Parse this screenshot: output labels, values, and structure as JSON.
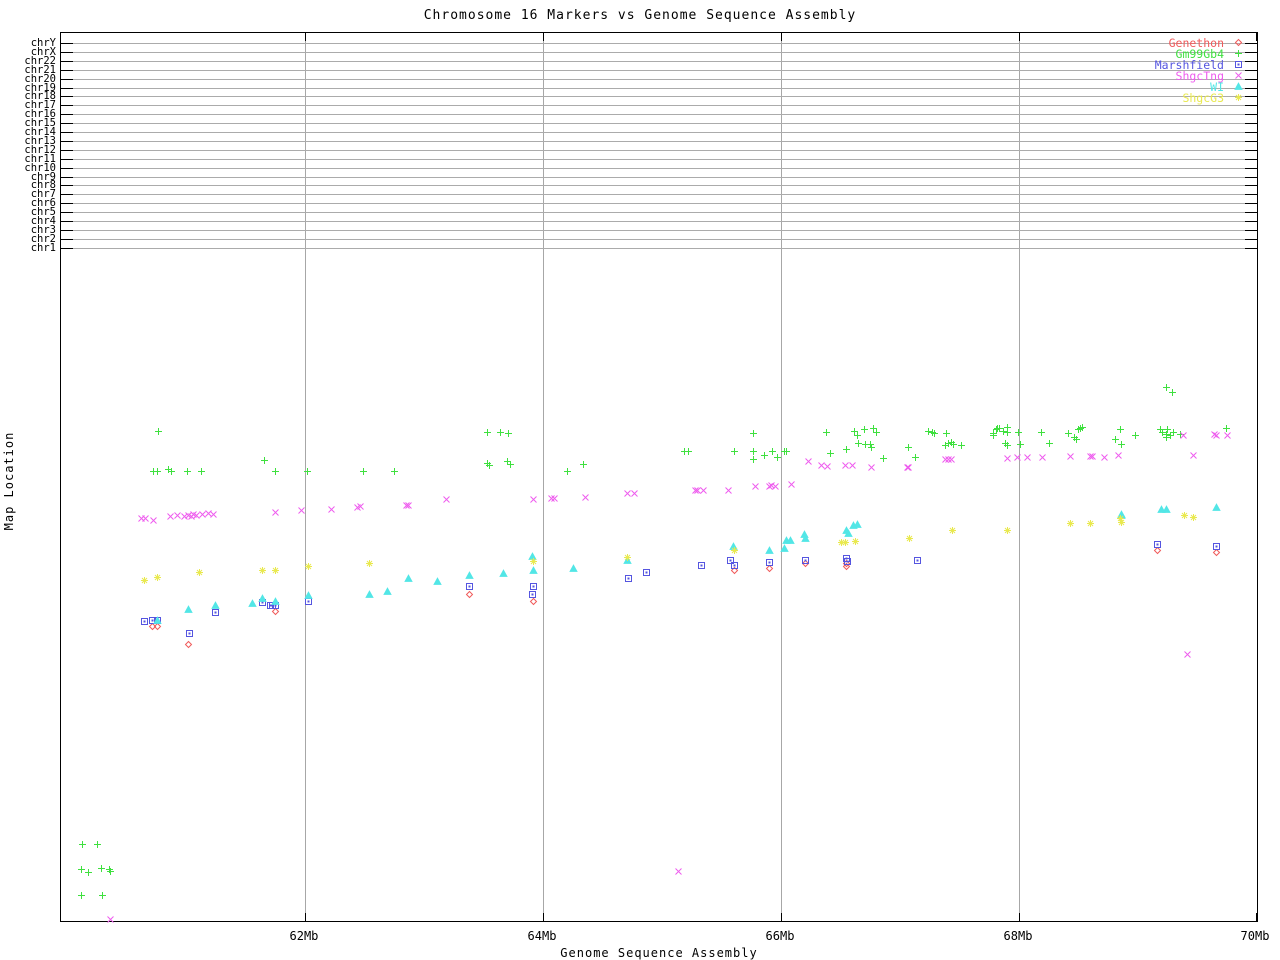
{
  "title": "Chromosome 16 Markers vs Genome Sequence Assembly",
  "chart_data": {
    "type": "scatter",
    "title": "Chromosome 16 Markers vs Genome Sequence Assembly",
    "xlabel": "Genome Sequence Assembly",
    "ylabel": "Map Location",
    "xlim": [
      59.95,
      70.0
    ],
    "x_unit": "Mb",
    "x_ticks": [
      {
        "value": 62,
        "label": "62Mb"
      },
      {
        "value": 64,
        "label": "64Mb"
      },
      {
        "value": 66,
        "label": "66Mb"
      },
      {
        "value": 68,
        "label": "68Mb"
      },
      {
        "value": 70,
        "label": "70Mb"
      }
    ],
    "grid_x_values": [
      62,
      64,
      66,
      68
    ],
    "y_axis_note": "y values are unlabeled map locations, given as fraction of plot height from bottom (0) to top (1)",
    "chromosome_rows": [
      "chrY",
      "chrX",
      "chr22",
      "chr21",
      "chr20",
      "chr19",
      "chr18",
      "chr17",
      "chr16",
      "chr15",
      "chr14",
      "chr13",
      "chr12",
      "chr11",
      "chr10",
      "chr9",
      "chr8",
      "chr7",
      "chr6",
      "chr5",
      "chr4",
      "chr3",
      "chr2",
      "chr1"
    ],
    "legend_position": "top-right",
    "series": [
      {
        "name": "Genethon",
        "marker": "diamond",
        "color": "#f05a5a",
        "points": [
          [
            60.72,
            0.338
          ],
          [
            60.76,
            0.338
          ],
          [
            61.02,
            0.318
          ],
          [
            61.75,
            0.355
          ],
          [
            63.38,
            0.375
          ],
          [
            63.92,
            0.367
          ],
          [
            65.61,
            0.402
          ],
          [
            65.9,
            0.404
          ],
          [
            66.21,
            0.409
          ],
          [
            66.55,
            0.409
          ],
          [
            66.55,
            0.406
          ],
          [
            69.16,
            0.424
          ],
          [
            69.66,
            0.422
          ]
        ]
      },
      {
        "name": "Gm99Gb4",
        "marker": "plus",
        "color": "#3fe03f",
        "points": [
          [
            60.13,
            0.093
          ],
          [
            60.26,
            0.093
          ],
          [
            60.12,
            0.065
          ],
          [
            60.18,
            0.061
          ],
          [
            60.29,
            0.066
          ],
          [
            60.36,
            0.065
          ],
          [
            60.37,
            0.062
          ],
          [
            60.12,
            0.035
          ],
          [
            60.3,
            0.035
          ],
          [
            60.77,
            0.558
          ],
          [
            60.73,
            0.513
          ],
          [
            60.76,
            0.513
          ],
          [
            60.85,
            0.515
          ],
          [
            60.88,
            0.513
          ],
          [
            61.01,
            0.513
          ],
          [
            61.13,
            0.513
          ],
          [
            61.66,
            0.525
          ],
          [
            61.75,
            0.513
          ],
          [
            62.02,
            0.513
          ],
          [
            62.49,
            0.513
          ],
          [
            62.75,
            0.513
          ],
          [
            63.53,
            0.557
          ],
          [
            63.64,
            0.557
          ],
          [
            63.71,
            0.556
          ],
          [
            63.53,
            0.522
          ],
          [
            63.55,
            0.52
          ],
          [
            63.7,
            0.524
          ],
          [
            63.73,
            0.521
          ],
          [
            64.21,
            0.513
          ],
          [
            64.34,
            0.521
          ],
          [
            65.19,
            0.535
          ],
          [
            65.22,
            0.535
          ],
          [
            65.61,
            0.535
          ],
          [
            65.77,
            0.556
          ],
          [
            65.77,
            0.535
          ],
          [
            65.77,
            0.527
          ],
          [
            65.86,
            0.531
          ],
          [
            65.93,
            0.535
          ],
          [
            65.97,
            0.529
          ],
          [
            66.03,
            0.535
          ],
          [
            66.05,
            0.535
          ],
          [
            66.38,
            0.557
          ],
          [
            66.42,
            0.533
          ],
          [
            66.55,
            0.538
          ],
          [
            66.62,
            0.558
          ],
          [
            66.64,
            0.554
          ],
          [
            66.65,
            0.544
          ],
          [
            66.7,
            0.56
          ],
          [
            66.71,
            0.543
          ],
          [
            66.75,
            0.543
          ],
          [
            66.78,
            0.561
          ],
          [
            66.8,
            0.557
          ],
          [
            66.76,
            0.54
          ],
          [
            66.86,
            0.528
          ],
          [
            67.07,
            0.54
          ],
          [
            67.13,
            0.529
          ],
          [
            67.24,
            0.558
          ],
          [
            67.27,
            0.557
          ],
          [
            67.29,
            0.556
          ],
          [
            67.38,
            0.542
          ],
          [
            67.41,
            0.544
          ],
          [
            67.43,
            0.546
          ],
          [
            67.45,
            0.543
          ],
          [
            67.39,
            0.556
          ],
          [
            67.52,
            0.542
          ],
          [
            67.79,
            0.553
          ],
          [
            67.79,
            0.556
          ],
          [
            67.81,
            0.56
          ],
          [
            67.82,
            0.561
          ],
          [
            67.84,
            0.561
          ],
          [
            67.87,
            0.558
          ],
          [
            67.9,
            0.557
          ],
          [
            67.9,
            0.562
          ],
          [
            67.89,
            0.544
          ],
          [
            67.9,
            0.542
          ],
          [
            68.0,
            0.557
          ],
          [
            68.01,
            0.543
          ],
          [
            68.19,
            0.557
          ],
          [
            68.26,
            0.544
          ],
          [
            68.42,
            0.556
          ],
          [
            68.47,
            0.551
          ],
          [
            68.48,
            0.549
          ],
          [
            68.5,
            0.56
          ],
          [
            68.52,
            0.561
          ],
          [
            68.53,
            0.562
          ],
          [
            68.81,
            0.549
          ],
          [
            68.85,
            0.56
          ],
          [
            68.86,
            0.543
          ],
          [
            68.98,
            0.553
          ],
          [
            69.19,
            0.56
          ],
          [
            69.21,
            0.557
          ],
          [
            69.24,
            0.555
          ],
          [
            69.25,
            0.56
          ],
          [
            69.27,
            0.553
          ],
          [
            69.3,
            0.557
          ],
          [
            69.24,
            0.551
          ],
          [
            69.36,
            0.555
          ],
          [
            69.74,
            0.561
          ],
          [
            69.24,
            0.607
          ],
          [
            69.29,
            0.602
          ]
        ]
      },
      {
        "name": "Marshfield",
        "marker": "square-dot",
        "color": "#5555e0",
        "points": [
          [
            60.65,
            0.344
          ],
          [
            60.72,
            0.345
          ],
          [
            60.76,
            0.345
          ],
          [
            61.03,
            0.33
          ],
          [
            61.25,
            0.354
          ],
          [
            61.64,
            0.365
          ],
          [
            61.71,
            0.362
          ],
          [
            61.73,
            0.362
          ],
          [
            61.75,
            0.362
          ],
          [
            62.03,
            0.366
          ],
          [
            63.38,
            0.383
          ],
          [
            63.91,
            0.375
          ],
          [
            63.92,
            0.383
          ],
          [
            64.72,
            0.392
          ],
          [
            64.87,
            0.399
          ],
          [
            65.33,
            0.407
          ],
          [
            65.58,
            0.413
          ],
          [
            65.61,
            0.407
          ],
          [
            65.9,
            0.41
          ],
          [
            66.21,
            0.413
          ],
          [
            66.55,
            0.415
          ],
          [
            66.56,
            0.412
          ],
          [
            67.15,
            0.413
          ],
          [
            69.16,
            0.431
          ],
          [
            69.66,
            0.429
          ]
        ]
      },
      {
        "name": "ShgcTng",
        "marker": "cross",
        "color": "#ee5cee",
        "points": [
          [
            60.63,
            0.46
          ],
          [
            60.66,
            0.46
          ],
          [
            60.73,
            0.458
          ],
          [
            60.87,
            0.462
          ],
          [
            60.93,
            0.463
          ],
          [
            60.99,
            0.462
          ],
          [
            61.02,
            0.463
          ],
          [
            61.05,
            0.462
          ],
          [
            61.06,
            0.464
          ],
          [
            61.09,
            0.463
          ],
          [
            61.14,
            0.465
          ],
          [
            61.19,
            0.466
          ],
          [
            61.23,
            0.465
          ],
          [
            61.75,
            0.467
          ],
          [
            61.97,
            0.469
          ],
          [
            62.22,
            0.47
          ],
          [
            62.44,
            0.472
          ],
          [
            62.47,
            0.473
          ],
          [
            62.85,
            0.475
          ],
          [
            62.87,
            0.475
          ],
          [
            63.19,
            0.481
          ],
          [
            63.92,
            0.481
          ],
          [
            64.07,
            0.482
          ],
          [
            64.1,
            0.482
          ],
          [
            64.36,
            0.484
          ],
          [
            64.71,
            0.488
          ],
          [
            64.77,
            0.488
          ],
          [
            65.28,
            0.491
          ],
          [
            65.3,
            0.492
          ],
          [
            65.35,
            0.492
          ],
          [
            65.56,
            0.492
          ],
          [
            65.79,
            0.496
          ],
          [
            65.9,
            0.496
          ],
          [
            65.92,
            0.497
          ],
          [
            65.95,
            0.496
          ],
          [
            66.09,
            0.498
          ],
          [
            66.23,
            0.524
          ],
          [
            66.34,
            0.52
          ],
          [
            66.39,
            0.519
          ],
          [
            66.54,
            0.52
          ],
          [
            66.6,
            0.52
          ],
          [
            66.76,
            0.518
          ],
          [
            67.06,
            0.518
          ],
          [
            67.07,
            0.518
          ],
          [
            67.38,
            0.526
          ],
          [
            67.41,
            0.527
          ],
          [
            67.43,
            0.526
          ],
          [
            67.9,
            0.528
          ],
          [
            67.99,
            0.529
          ],
          [
            68.07,
            0.529
          ],
          [
            68.2,
            0.529
          ],
          [
            68.43,
            0.53
          ],
          [
            68.6,
            0.53
          ],
          [
            68.62,
            0.53
          ],
          [
            68.72,
            0.529
          ],
          [
            68.84,
            0.531
          ],
          [
            69.38,
            0.553
          ],
          [
            69.47,
            0.531
          ],
          [
            69.64,
            0.555
          ],
          [
            69.66,
            0.554
          ],
          [
            69.75,
            0.554
          ],
          [
            60.37,
            0.009
          ],
          [
            65.14,
            0.063
          ],
          [
            69.42,
            0.307
          ]
        ]
      },
      {
        "name": "WI",
        "marker": "triangle",
        "color": "#52e6e6",
        "points": [
          [
            60.76,
            0.345
          ],
          [
            61.02,
            0.357
          ],
          [
            61.25,
            0.362
          ],
          [
            61.56,
            0.364
          ],
          [
            61.64,
            0.37
          ],
          [
            61.75,
            0.366
          ],
          [
            62.03,
            0.373
          ],
          [
            62.54,
            0.374
          ],
          [
            62.69,
            0.378
          ],
          [
            62.87,
            0.393
          ],
          [
            63.11,
            0.389
          ],
          [
            63.38,
            0.396
          ],
          [
            63.67,
            0.398
          ],
          [
            63.91,
            0.417
          ],
          [
            63.92,
            0.402
          ],
          [
            64.26,
            0.404
          ],
          [
            64.71,
            0.413
          ],
          [
            65.6,
            0.429
          ],
          [
            65.9,
            0.424
          ],
          [
            66.03,
            0.426
          ],
          [
            66.05,
            0.435
          ],
          [
            66.08,
            0.435
          ],
          [
            66.2,
            0.442
          ],
          [
            66.21,
            0.438
          ],
          [
            66.55,
            0.446
          ],
          [
            66.57,
            0.443
          ],
          [
            66.61,
            0.452
          ],
          [
            66.64,
            0.453
          ],
          [
            68.86,
            0.463
          ],
          [
            68.86,
            0.465
          ],
          [
            69.2,
            0.47
          ],
          [
            69.24,
            0.47
          ],
          [
            69.66,
            0.472
          ]
        ]
      },
      {
        "name": "ShgcG3",
        "marker": "star",
        "color": "#e9e94e",
        "points": [
          [
            60.65,
            0.39
          ],
          [
            60.76,
            0.394
          ],
          [
            61.11,
            0.399
          ],
          [
            61.64,
            0.402
          ],
          [
            61.75,
            0.402
          ],
          [
            62.03,
            0.406
          ],
          [
            62.54,
            0.409
          ],
          [
            63.92,
            0.412
          ],
          [
            64.71,
            0.416
          ],
          [
            65.61,
            0.424
          ],
          [
            66.51,
            0.433
          ],
          [
            66.54,
            0.433
          ],
          [
            66.63,
            0.434
          ],
          [
            67.08,
            0.438
          ],
          [
            67.44,
            0.446
          ],
          [
            67.9,
            0.447
          ],
          [
            68.43,
            0.454
          ],
          [
            68.6,
            0.454
          ],
          [
            68.85,
            0.46
          ],
          [
            68.86,
            0.455
          ],
          [
            69.39,
            0.463
          ],
          [
            69.47,
            0.461
          ]
        ]
      }
    ]
  }
}
